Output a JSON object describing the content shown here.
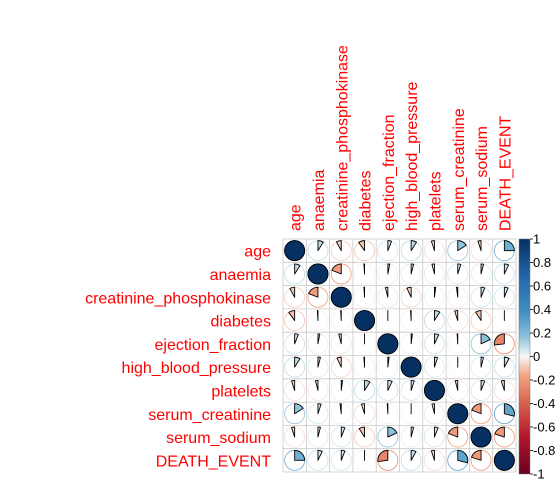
{
  "chart_data": {
    "type": "heatmap",
    "style": "corrplot-pie",
    "variables": [
      "age",
      "anaemia",
      "creatinine_phosphokinase",
      "diabetes",
      "ejection_fraction",
      "high_blood_pressure",
      "platelets",
      "serum_creatinine",
      "serum_sodium",
      "DEATH_EVENT"
    ],
    "matrix": [
      [
        1.0,
        0.09,
        -0.08,
        -0.1,
        0.06,
        0.09,
        -0.05,
        0.16,
        -0.05,
        0.25
      ],
      [
        0.09,
        1.0,
        -0.19,
        -0.01,
        0.03,
        0.04,
        -0.04,
        0.05,
        0.04,
        0.07
      ],
      [
        -0.08,
        -0.19,
        1.0,
        -0.01,
        -0.04,
        -0.07,
        0.02,
        -0.02,
        0.06,
        0.06
      ],
      [
        -0.1,
        -0.01,
        -0.01,
        1.0,
        -0.0,
        -0.01,
        0.09,
        -0.05,
        -0.09,
        -0.0
      ],
      [
        0.06,
        0.03,
        -0.04,
        -0.0,
        1.0,
        0.02,
        0.07,
        -0.01,
        0.18,
        -0.27
      ],
      [
        0.09,
        0.04,
        -0.07,
        -0.01,
        0.02,
        1.0,
        0.05,
        -0.0,
        0.04,
        0.08
      ],
      [
        -0.05,
        -0.04,
        0.02,
        0.09,
        0.07,
        0.05,
        1.0,
        -0.04,
        0.06,
        -0.05
      ],
      [
        0.16,
        0.05,
        -0.02,
        -0.05,
        -0.01,
        -0.0,
        -0.04,
        1.0,
        -0.19,
        0.29
      ],
      [
        -0.05,
        0.04,
        0.06,
        -0.09,
        0.18,
        0.04,
        0.06,
        -0.19,
        1.0,
        -0.2
      ],
      [
        0.25,
        0.07,
        0.06,
        -0.0,
        -0.27,
        0.08,
        -0.05,
        0.29,
        -0.2,
        1.0
      ]
    ],
    "colorbar": {
      "ticks": [
        "1",
        "0.8",
        "0.6",
        "0.4",
        "0.2",
        "0",
        "-0.2",
        "-0.4",
        "-0.6",
        "-0.8",
        "-1"
      ],
      "range": [
        -1,
        1
      ]
    },
    "colors": {
      "negative_strong": "#67001f",
      "negative_mid": "#d6604d",
      "negative_light": "#fddbc7",
      "neutral": "#ffffff",
      "positive_light": "#d1e5f0",
      "positive_mid": "#4393c3",
      "positive_strong": "#053061",
      "label": "#ff0000"
    }
  }
}
